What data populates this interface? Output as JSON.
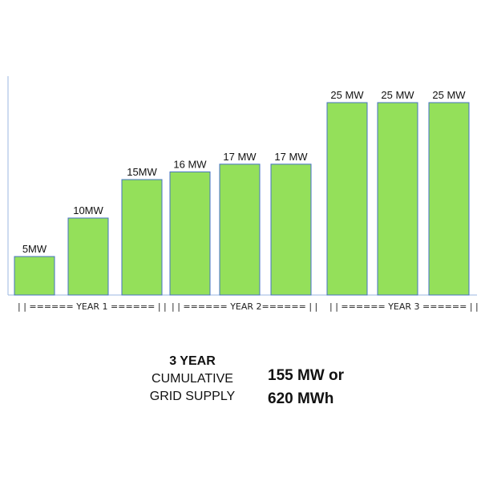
{
  "chart_data": {
    "type": "bar",
    "values": [
      5,
      10,
      15,
      16,
      17,
      17,
      25,
      25,
      25
    ],
    "value_labels": [
      "5MW",
      "10MW",
      "15MW",
      "16 MW",
      "17 MW",
      "17 MW",
      "25 MW",
      "25 MW",
      "25 MW"
    ],
    "group_labels": [
      "| | ====== YEAR 1 ====== | |",
      "| | ====== YEAR 2====== | |",
      "| | ====== YEAR 3 ====== | |"
    ],
    "ylim": [
      0,
      25
    ],
    "bar_color": "#94e05a",
    "bar_edge_color": "#4472c4",
    "axis_color": "#9bb7e0"
  },
  "summary": {
    "line1": "3 YEAR",
    "line2": "CUMULATIVE",
    "line3": "GRID SUPPLY",
    "total_line1": "155 MW or",
    "total_line2": "620 MWh"
  }
}
